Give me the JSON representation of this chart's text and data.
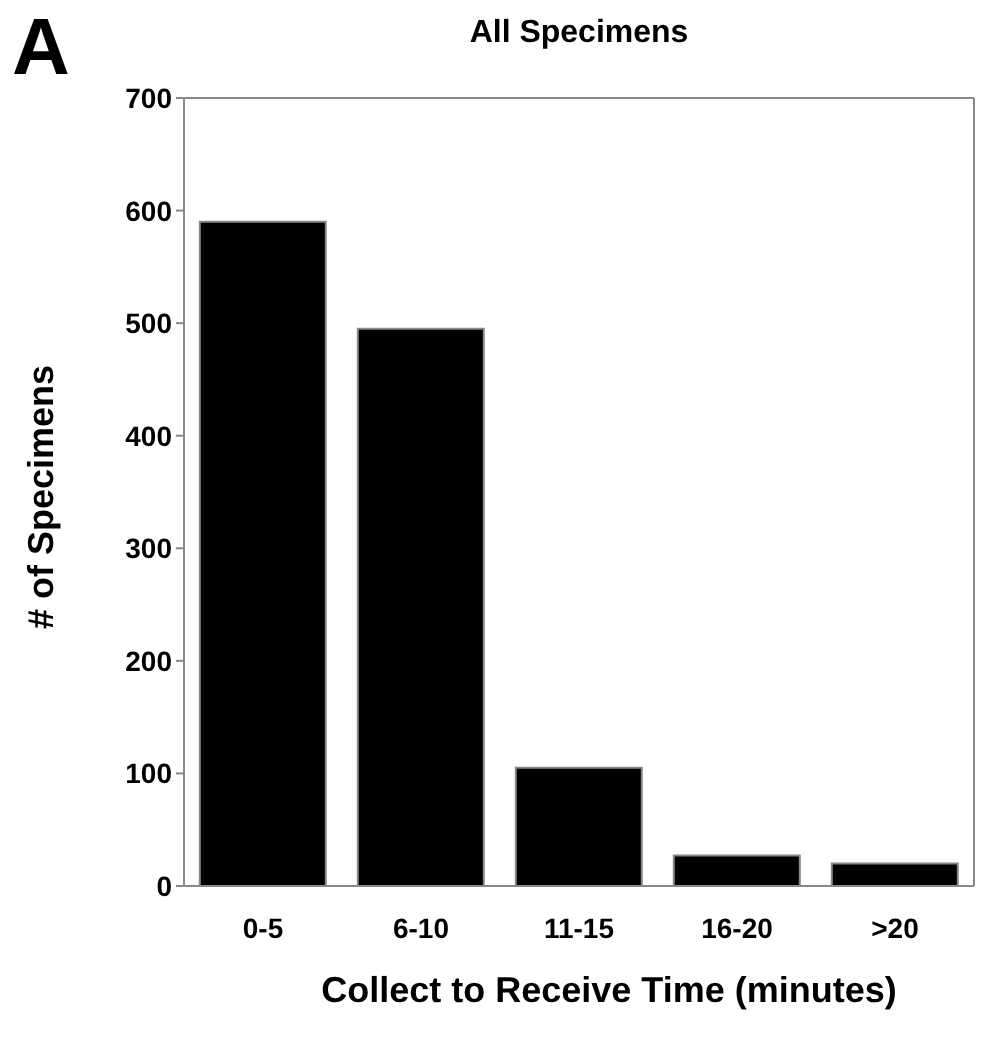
{
  "chart_data": {
    "type": "bar",
    "title": "All Specimens",
    "xlabel": "Collect to Receive Time (minutes)",
    "ylabel": "# of Specimens",
    "annotations": [
      "A"
    ],
    "categories": [
      "0-5",
      "6-10",
      "11-15",
      "16-20",
      ">20"
    ],
    "values": [
      590,
      495,
      105,
      27,
      20
    ],
    "color": "#000000",
    "ylim": [
      0,
      700
    ],
    "yticks": [
      0,
      100,
      200,
      300,
      400,
      500,
      600,
      700
    ],
    "grid": false
  }
}
